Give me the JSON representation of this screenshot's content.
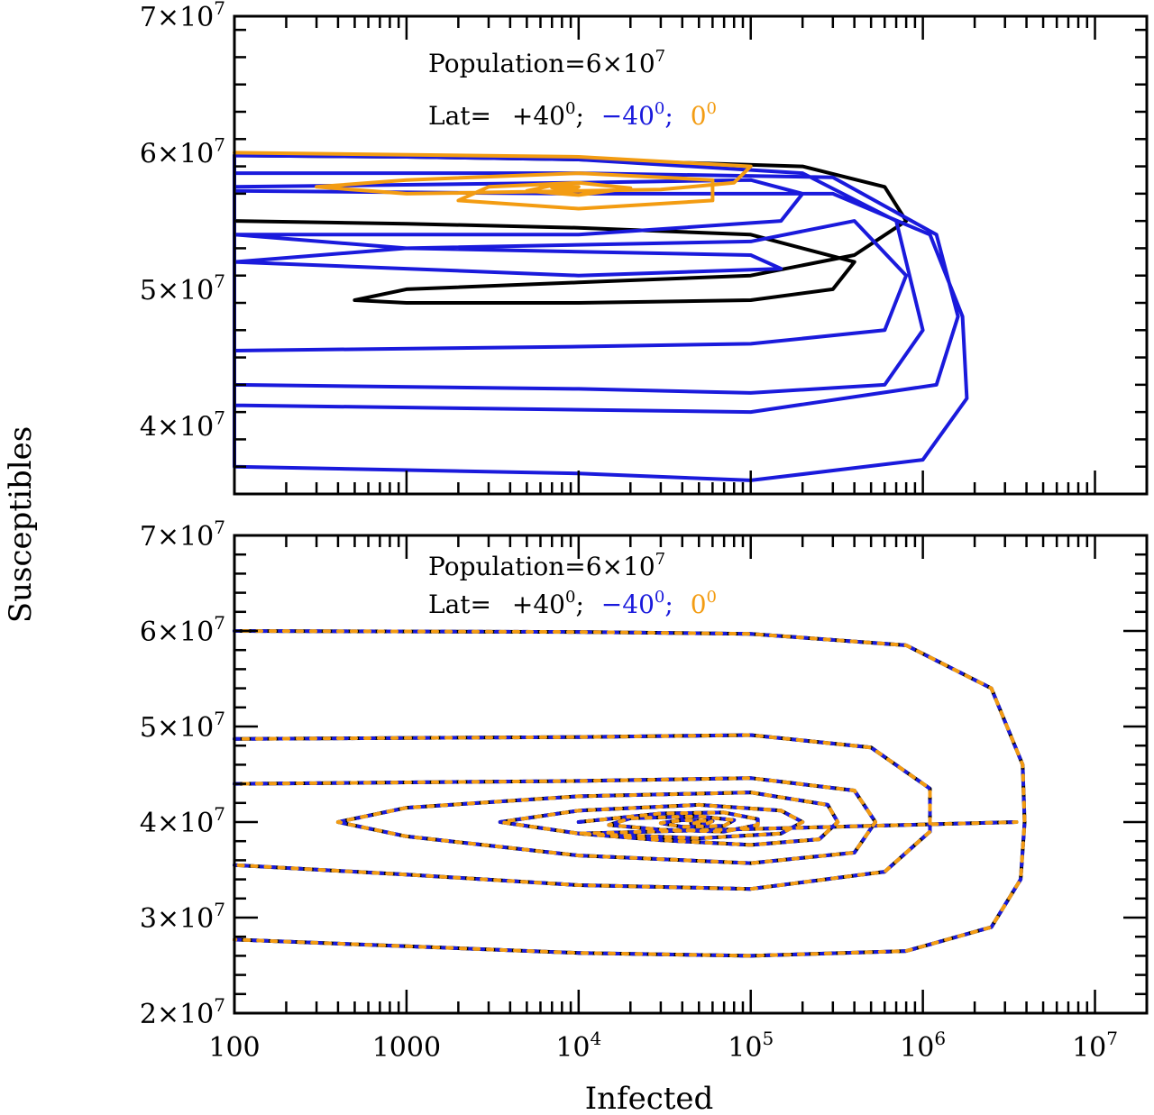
{
  "chart_data": [
    {
      "type": "line",
      "panel": "top",
      "xlabel": "Infected",
      "ylabel": "Susceptibles",
      "x_scale": "log",
      "xlim": [
        100,
        20000000
      ],
      "ylim": [
        35000000,
        70000000
      ],
      "x_tick_labels": [],
      "y_ticks": [
        40000000,
        50000000,
        60000000,
        70000000
      ],
      "y_tick_labels": [
        {
          "mant": "4",
          "exp": "7"
        },
        {
          "mant": "5",
          "exp": "7"
        },
        {
          "mant": "6",
          "exp": "7"
        },
        {
          "mant": "7",
          "exp": "7"
        }
      ],
      "annotation": {
        "population": {
          "text": "Population=6×10",
          "exp": "7"
        },
        "lat_prefix": "Lat=",
        "lat_items": [
          {
            "text": "+40",
            "sup": "0",
            "sep": ";",
            "color": "#000000"
          },
          {
            "text": "−40",
            "sup": "0",
            "sep": ";",
            "color": "#1a1adc"
          },
          {
            "text": "0",
            "sup": "0",
            "sep": "",
            "color": "#f39c12"
          }
        ]
      },
      "series": [
        {
          "name": "+40°",
          "color": "#000000",
          "points": [
            [
              100,
              55000000
            ],
            [
              1000,
              54800000
            ],
            [
              10000,
              54500000
            ],
            [
              100000,
              54000000
            ],
            [
              400000,
              52000000
            ],
            [
              300000,
              50000000
            ],
            [
              100000,
              49200000
            ],
            [
              10000,
              49000000
            ],
            [
              1000,
              49000000
            ],
            [
              500,
              49200000
            ],
            [
              1000,
              50000000
            ],
            [
              10000,
              50500000
            ],
            [
              100000,
              51000000
            ],
            [
              400000,
              52500000
            ],
            [
              800000,
              55000000
            ],
            [
              600000,
              57500000
            ],
            [
              200000,
              59000000
            ],
            [
              10000,
              59500000
            ],
            [
              1000,
              59700000
            ],
            [
              100,
              59800000
            ]
          ]
        },
        {
          "name": "−40°",
          "color": "#1a1adc",
          "points": [
            [
              100,
              57500000
            ],
            [
              10000,
              57800000
            ],
            [
              100000,
              58000000
            ],
            [
              200000,
              57000000
            ],
            [
              150000,
              55000000
            ],
            [
              10000,
              54000000
            ],
            [
              100,
              54000000
            ],
            [
              1000,
              53000000
            ],
            [
              100000,
              52500000
            ],
            [
              150000,
              51500000
            ],
            [
              10000,
              51000000
            ],
            [
              1000,
              51500000
            ],
            [
              100,
              52000000
            ],
            [
              1000,
              53000000
            ],
            [
              100000,
              53500000
            ],
            [
              400000,
              55000000
            ],
            [
              800000,
              51000000
            ],
            [
              600000,
              47000000
            ],
            [
              100000,
              46000000
            ],
            [
              10000,
              45800000
            ],
            [
              100,
              45500000
            ],
            [
              100,
              43000000
            ],
            [
              10000,
              42700000
            ],
            [
              100000,
              42400000
            ],
            [
              600000,
              43000000
            ],
            [
              1000000,
              47000000
            ],
            [
              700000,
              55000000
            ],
            [
              200000,
              58500000
            ],
            [
              10000,
              59500000
            ],
            [
              1000,
              59700000
            ],
            [
              100,
              59800000
            ],
            [
              100,
              41500000
            ],
            [
              100000,
              41000000
            ],
            [
              1200000,
              43000000
            ],
            [
              1600000,
              48000000
            ],
            [
              1200000,
              54000000
            ],
            [
              300000,
              58200000
            ],
            [
              10000,
              58500000
            ],
            [
              100,
              58500000
            ],
            [
              100,
              37000000
            ],
            [
              10000,
              36500000
            ],
            [
              100000,
              36000000
            ],
            [
              1000000,
              37500000
            ],
            [
              1800000,
              42000000
            ],
            [
              1700000,
              48000000
            ],
            [
              1100000,
              54000000
            ],
            [
              300000,
              57000000
            ],
            [
              10000,
              57000000
            ],
            [
              100,
              57200000
            ]
          ]
        },
        {
          "name": "0°",
          "color": "#f39c12",
          "points": [
            [
              100,
              60000000
            ],
            [
              10000,
              59700000
            ],
            [
              100000,
              59000000
            ],
            [
              80000,
              57800000
            ],
            [
              30000,
              57300000
            ],
            [
              1000,
              57000000
            ],
            [
              300,
              57500000
            ],
            [
              1000,
              58000000
            ],
            [
              10000,
              58500000
            ],
            [
              60000,
              58000000
            ],
            [
              60000,
              56500000
            ],
            [
              10000,
              55900000
            ],
            [
              2000,
              56500000
            ],
            [
              3000,
              57500000
            ],
            [
              10000,
              57800000
            ],
            [
              20000,
              57400000
            ],
            [
              10000,
              56900000
            ],
            [
              5000,
              57200000
            ],
            [
              7000,
              57600000
            ],
            [
              10000,
              57500000
            ],
            [
              9000,
              57300000
            ],
            [
              7000,
              57450000
            ],
            [
              8000,
              57500000
            ]
          ]
        }
      ]
    },
    {
      "type": "line",
      "panel": "bottom",
      "xlabel": "Infected",
      "ylabel": "Susceptibles",
      "x_scale": "log",
      "xlim": [
        100,
        20000000
      ],
      "ylim": [
        20000000,
        70000000
      ],
      "x_ticks": [
        100,
        1000,
        10000,
        100000,
        1000000,
        10000000
      ],
      "x_tick_labels": [
        {
          "mant": "100",
          "exp": ""
        },
        {
          "mant": "1000",
          "exp": ""
        },
        {
          "mant": "10",
          "exp": "4"
        },
        {
          "mant": "10",
          "exp": "5"
        },
        {
          "mant": "10",
          "exp": "6"
        },
        {
          "mant": "10",
          "exp": "7"
        }
      ],
      "y_ticks": [
        20000000,
        30000000,
        40000000,
        50000000,
        60000000,
        70000000
      ],
      "y_tick_labels": [
        {
          "mant": "2",
          "exp": "7"
        },
        {
          "mant": "3",
          "exp": "7"
        },
        {
          "mant": "4",
          "exp": "7"
        },
        {
          "mant": "5",
          "exp": "7"
        },
        {
          "mant": "6",
          "exp": "7"
        },
        {
          "mant": "7",
          "exp": "7"
        }
      ],
      "annotation": {
        "population": {
          "text": "Population=6×10",
          "exp": "7"
        },
        "lat_prefix": "Lat=",
        "lat_items": [
          {
            "text": "+40",
            "sup": "0",
            "sep": ";",
            "color": "#000000"
          },
          {
            "text": "−40",
            "sup": "0",
            "sep": ";",
            "color": "#1a1adc"
          },
          {
            "text": "0",
            "sup": "0",
            "sep": "",
            "color": "#f39c12"
          }
        ]
      },
      "series": [
        {
          "name": "+40°, −40°, 0° (overlapping)",
          "colors": [
            "#000000",
            "#1a1adc",
            "#f39c12"
          ],
          "points": [
            [
              100,
              60000000
            ],
            [
              10000,
              59900000
            ],
            [
              100000,
              59700000
            ],
            [
              800000,
              58500000
            ],
            [
              2500000,
              54000000
            ],
            [
              3800000,
              46000000
            ],
            [
              3900000,
              40000000
            ],
            [
              3700000,
              34000000
            ],
            [
              2500000,
              29000000
            ],
            [
              800000,
              26500000
            ],
            [
              100000,
              26000000
            ],
            [
              10000,
              26300000
            ],
            [
              1000,
              27000000
            ],
            [
              100,
              27700000
            ],
            "gap",
            [
              100,
              48700000
            ],
            [
              10000,
              48900000
            ],
            [
              100000,
              49100000
            ],
            [
              500000,
              47800000
            ],
            [
              1100000,
              43500000
            ],
            [
              1100000,
              39000000
            ],
            [
              600000,
              34800000
            ],
            [
              100000,
              33000000
            ],
            [
              10000,
              33400000
            ],
            [
              1000,
              34500000
            ],
            [
              100,
              35500000
            ],
            "gap",
            [
              100,
              44000000
            ],
            [
              10000,
              44300000
            ],
            [
              100000,
              44600000
            ],
            [
              400000,
              43300000
            ],
            [
              530000,
              40000000
            ],
            [
              400000,
              36800000
            ],
            [
              100000,
              35700000
            ],
            [
              10000,
              36500000
            ],
            [
              1000,
              38500000
            ],
            [
              400,
              40000000
            ],
            [
              1000,
              41500000
            ],
            [
              10000,
              42700000
            ],
            [
              100000,
              43100000
            ],
            [
              280000,
              41800000
            ],
            [
              320000,
              40000000
            ],
            [
              250000,
              38200000
            ],
            [
              100000,
              37600000
            ],
            [
              30000,
              38100000
            ],
            [
              10000,
              38800000
            ],
            [
              3500000,
              40000000
            ],
            "gap",
            [
              3500,
              40000000
            ],
            [
              10000,
              41200000
            ],
            [
              50000,
              41800000
            ],
            [
              150000,
              41200000
            ],
            [
              200000,
              40000000
            ],
            [
              150000,
              38800000
            ],
            [
              50000,
              38300000
            ],
            [
              10000,
              38800000
            ],
            [
              3500,
              40000000
            ],
            "gap",
            [
              10000,
              40000000
            ],
            [
              30000,
              40900000
            ],
            [
              70000,
              41000000
            ],
            [
              110000,
              40300000
            ],
            [
              110000,
              39700000
            ],
            [
              70000,
              39000000
            ],
            [
              30000,
              39200000
            ],
            [
              15000,
              39700000
            ],
            [
              20000,
              40400000
            ],
            [
              50000,
              40600000
            ],
            [
              80000,
              40200000
            ],
            [
              70000,
              39600000
            ],
            [
              40000,
              39500000
            ],
            [
              30000,
              39900000
            ],
            [
              40000,
              40200000
            ],
            [
              60000,
              40100000
            ],
            [
              55000,
              39800000
            ],
            [
              45000,
              39900000
            ],
            [
              50000,
              40000000
            ]
          ]
        }
      ]
    }
  ]
}
